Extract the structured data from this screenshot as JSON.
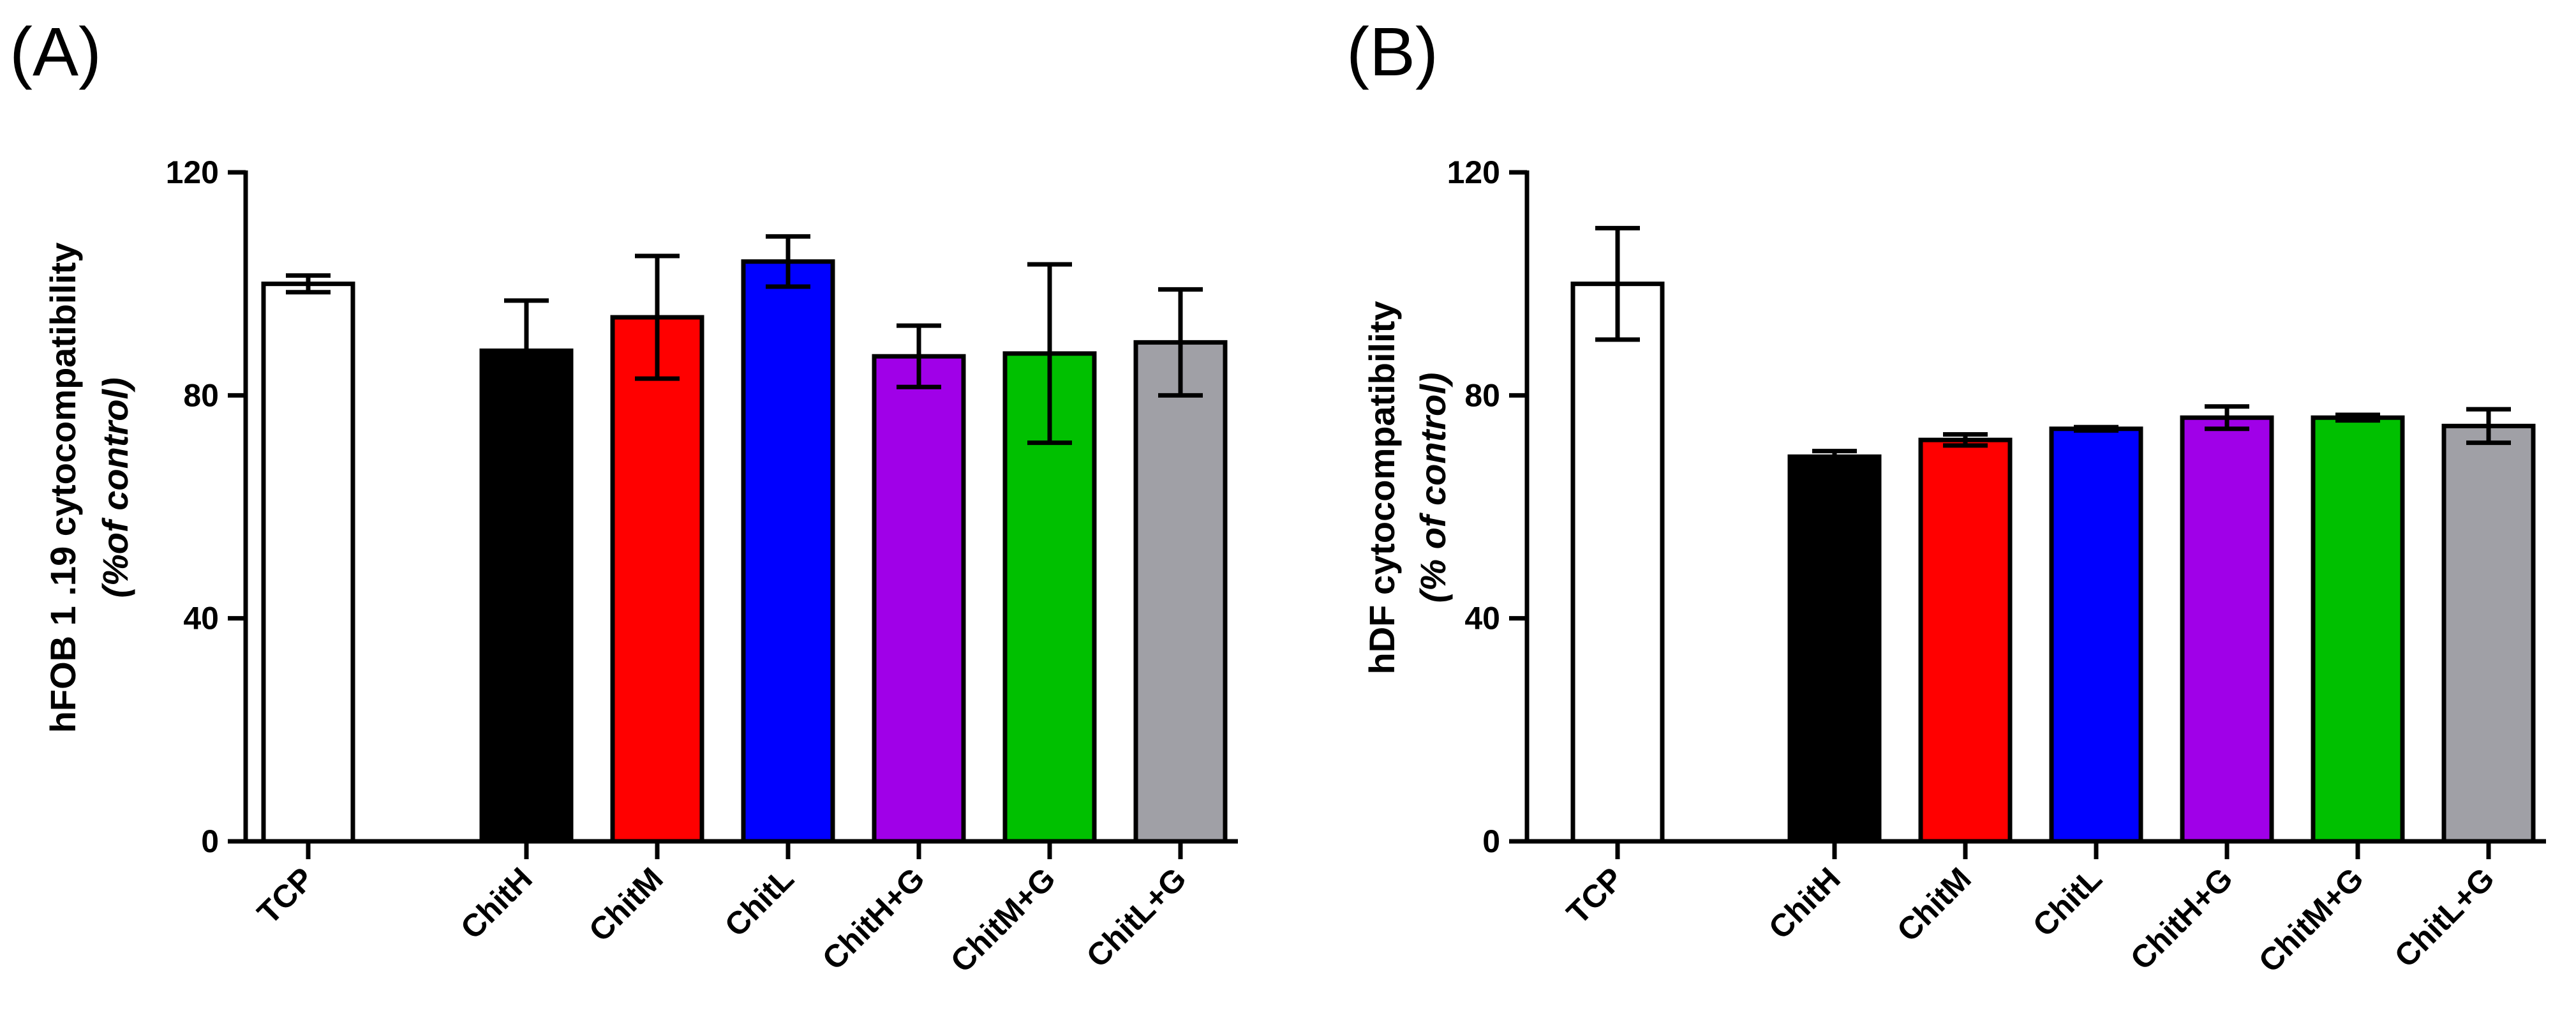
{
  "chart_data": [
    {
      "type": "bar",
      "panel_label": "(A)",
      "title": "",
      "xlabel": "",
      "ylabel": "hFOB 1 .19 cytocompatibility",
      "ylabel_sub": "(%of control)",
      "ylim": [
        0,
        120
      ],
      "yticks": [
        "0",
        "40",
        "80",
        "120"
      ],
      "categories": [
        "TCP",
        "ChitH",
        "ChitM",
        "ChitL",
        "ChitH+G",
        "ChitM+G",
        "ChitL+G"
      ],
      "values": [
        100,
        88,
        94,
        104,
        87,
        87.5,
        89.5
      ],
      "errors": [
        1.5,
        9,
        11,
        4.5,
        5.5,
        16,
        9.5
      ],
      "colors": [
        "#ffffff",
        "#000000",
        "#ff0000",
        "#0000ff",
        "#a000e8",
        "#00c000",
        "#a0a0a6"
      ],
      "grid": false
    },
    {
      "type": "bar",
      "panel_label": "(B)",
      "title": "",
      "xlabel": "",
      "ylabel": "hDF cytocompatibility",
      "ylabel_sub": "(% of control)",
      "ylim": [
        0,
        120
      ],
      "yticks": [
        "0",
        "40",
        "80",
        "120"
      ],
      "categories": [
        "TCP",
        "ChitH",
        "ChitM",
        "ChitL",
        "ChitH+G",
        "ChitM+G",
        "ChitL+G"
      ],
      "values": [
        100,
        69,
        72,
        74,
        76,
        76,
        74.5
      ],
      "errors": [
        10,
        1,
        1,
        0.3,
        2,
        0.5,
        3
      ],
      "colors": [
        "#ffffff",
        "#000000",
        "#ff0000",
        "#0000ff",
        "#a000e8",
        "#00c000",
        "#a0a0a6"
      ],
      "grid": false
    }
  ]
}
